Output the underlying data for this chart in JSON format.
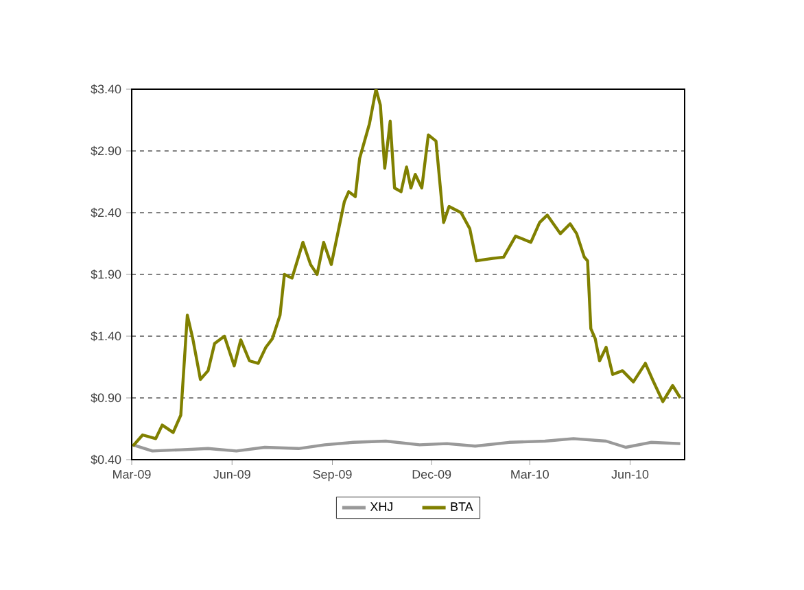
{
  "chart_data": {
    "type": "line",
    "xlim": [
      "2009-03-01",
      "2010-07-21"
    ],
    "xticks": [
      {
        "value": "2009-03-01",
        "label": "Mar-09"
      },
      {
        "value": "2009-06-01",
        "label": "Jun-09"
      },
      {
        "value": "2009-09-01",
        "label": "Sep-09"
      },
      {
        "value": "2009-12-01",
        "label": "Dec-09"
      },
      {
        "value": "2010-03-01",
        "label": "Mar-10"
      },
      {
        "value": "2010-06-01",
        "label": "Jun-10"
      }
    ],
    "ylim": [
      0.4,
      3.4
    ],
    "yticks": [
      {
        "value": 0.4,
        "label": "$0.40"
      },
      {
        "value": 0.9,
        "label": "$0.90"
      },
      {
        "value": 1.4,
        "label": "$1.40"
      },
      {
        "value": 1.9,
        "label": "$1.90"
      },
      {
        "value": 2.4,
        "label": "$2.40"
      },
      {
        "value": 2.9,
        "label": "$2.90"
      },
      {
        "value": 3.4,
        "label": "$3.40"
      }
    ],
    "grid": "y",
    "legend": "bottom",
    "marker": "none",
    "line_style": "solid",
    "series": [
      {
        "name": "XHJ",
        "color": "#999999",
        "x": [
          "2009-03-02",
          "2009-03-20",
          "2009-04-15",
          "2009-05-10",
          "2009-06-05",
          "2009-07-01",
          "2009-08-01",
          "2009-08-25",
          "2009-09-20",
          "2009-10-20",
          "2009-11-20",
          "2009-12-15",
          "2010-01-10",
          "2010-02-10",
          "2010-03-15",
          "2010-04-10",
          "2010-05-10",
          "2010-05-28",
          "2010-06-20",
          "2010-07-17"
        ],
        "values": [
          0.52,
          0.47,
          0.48,
          0.49,
          0.47,
          0.5,
          0.49,
          0.52,
          0.54,
          0.55,
          0.52,
          0.53,
          0.51,
          0.54,
          0.55,
          0.57,
          0.55,
          0.5,
          0.54,
          0.53
        ]
      },
      {
        "name": "BTA",
        "color": "#808000",
        "x": [
          "2009-03-02",
          "2009-03-11",
          "2009-03-23",
          "2009-03-29",
          "2009-04-08",
          "2009-04-15",
          "2009-04-21",
          "2009-04-26",
          "2009-05-03",
          "2009-05-10",
          "2009-05-16",
          "2009-05-25",
          "2009-06-03",
          "2009-06-09",
          "2009-06-17",
          "2009-06-25",
          "2009-07-02",
          "2009-07-08",
          "2009-07-15",
          "2009-07-19",
          "2009-07-26",
          "2009-08-05",
          "2009-08-12",
          "2009-08-18",
          "2009-08-24",
          "2009-08-31",
          "2009-09-12",
          "2009-09-16",
          "2009-09-22",
          "2009-09-26",
          "2009-10-05",
          "2009-10-11",
          "2009-10-15",
          "2009-10-19",
          "2009-10-24",
          "2009-10-28",
          "2009-11-03",
          "2009-11-08",
          "2009-11-12",
          "2009-11-16",
          "2009-11-22",
          "2009-11-28",
          "2009-12-05",
          "2009-12-12",
          "2009-12-17",
          "2009-12-28",
          "2010-01-05",
          "2010-01-11",
          "2010-01-26",
          "2010-02-05",
          "2010-02-16",
          "2010-03-02",
          "2010-03-10",
          "2010-03-17",
          "2010-03-29",
          "2010-04-07",
          "2010-04-13",
          "2010-04-20",
          "2010-04-23",
          "2010-04-26",
          "2010-04-30",
          "2010-05-04",
          "2010-05-10",
          "2010-05-16",
          "2010-05-25",
          "2010-06-04",
          "2010-06-15",
          "2010-06-22",
          "2010-07-01",
          "2010-07-10",
          "2010-07-17"
        ],
        "values": [
          0.51,
          0.6,
          0.57,
          0.68,
          0.62,
          0.76,
          1.57,
          1.38,
          1.05,
          1.12,
          1.34,
          1.4,
          1.16,
          1.37,
          1.2,
          1.18,
          1.31,
          1.38,
          1.57,
          1.9,
          1.87,
          2.16,
          1.98,
          1.9,
          2.16,
          1.98,
          2.49,
          2.57,
          2.53,
          2.84,
          3.12,
          3.4,
          3.27,
          2.76,
          3.14,
          2.6,
          2.57,
          2.77,
          2.6,
          2.71,
          2.6,
          3.03,
          2.98,
          2.32,
          2.45,
          2.4,
          2.27,
          2.01,
          2.03,
          2.04,
          2.21,
          2.16,
          2.32,
          2.38,
          2.23,
          2.31,
          2.23,
          2.04,
          2.01,
          1.46,
          1.38,
          1.2,
          1.31,
          1.09,
          1.12,
          1.03,
          1.18,
          1.04,
          0.87,
          1.0,
          0.9
        ]
      }
    ]
  }
}
